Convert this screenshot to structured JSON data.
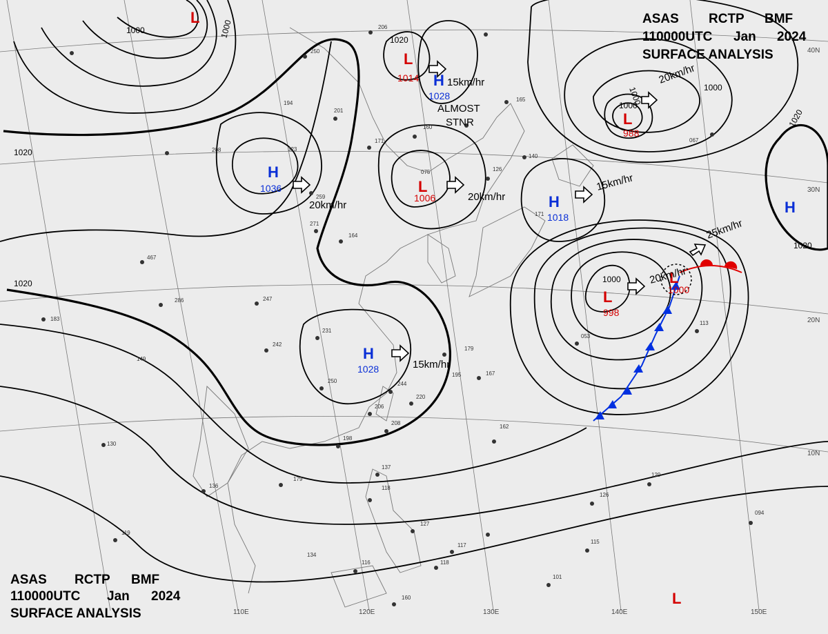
{
  "header_top": {
    "line1": [
      "ASAS",
      "RCTP",
      "BMF"
    ],
    "line2": [
      "110000UTC",
      "Jan",
      "2024"
    ],
    "line3": "SURFACE ANALYSIS"
  },
  "header_bottom": {
    "line1": [
      "ASAS",
      "RCTP",
      "BMF"
    ],
    "line2": [
      "110000UTC",
      "Jan",
      "2024"
    ],
    "line3": "SURFACE ANALYSIS"
  },
  "pressure_systems": [
    {
      "id": "l-top-left",
      "type": "L",
      "value": ""
    },
    {
      "id": "l-1014",
      "type": "L",
      "value": "1014"
    },
    {
      "id": "h-1028-north",
      "type": "H",
      "value": "1028"
    },
    {
      "id": "l-988-ne",
      "type": "L",
      "value": "988"
    },
    {
      "id": "h-1036",
      "type": "H",
      "value": "1036"
    },
    {
      "id": "l-1006",
      "type": "L",
      "value": "1006"
    },
    {
      "id": "h-1018",
      "type": "H",
      "value": "1018"
    },
    {
      "id": "h-east",
      "type": "H",
      "value": ""
    },
    {
      "id": "l-998",
      "type": "L",
      "value": "998"
    },
    {
      "id": "l-1000-front",
      "type": "L",
      "value": "1000"
    },
    {
      "id": "h-1028-south",
      "type": "H",
      "value": "1028"
    },
    {
      "id": "l-bottom-right",
      "type": "L",
      "value": ""
    }
  ],
  "movements": {
    "m1028n": "15km/hr",
    "almost1": "ALMOST",
    "almost2": "STNR",
    "m988": "20km/hr",
    "m1036": "20km/hr",
    "m1006": "20km/hr",
    "m1018": "15km/hr",
    "m_front": "25km/hr",
    "m998": "20km/hr",
    "m1028s": "15km/hr"
  },
  "isobar_labels": [
    "1000",
    "1000",
    "1020",
    "1020",
    "1000",
    "1000",
    "1020",
    "1020",
    "1000",
    "1000",
    "1020"
  ],
  "grid_labels": {
    "lat_40": "40N",
    "lat_30": "30N",
    "lat_20": "20N",
    "lat_10": "10N",
    "lon_110": "110E",
    "lon_120": "120E",
    "lon_130": "130E",
    "lon_140": "140E",
    "lon_150": "150E"
  },
  "stations": [
    "206",
    "250",
    "208",
    "323",
    "194",
    "201",
    "171",
    "160",
    "259",
    "271",
    "164",
    "075",
    "126",
    "140",
    "171",
    "467",
    "286",
    "247",
    "183",
    "149",
    "242",
    "231",
    "250",
    "195",
    "179",
    "167",
    "244",
    "220",
    "206",
    "208",
    "198",
    "162",
    "130",
    "179",
    "136",
    "137",
    "118",
    "127",
    "126",
    "129",
    "094",
    "119",
    "134",
    "116",
    "118",
    "117",
    "115",
    "101",
    "160",
    "053",
    "113",
    "067",
    "165"
  ],
  "colors": {
    "low": "#d40000",
    "high": "#0a2fd6",
    "warm_front": "#e00000",
    "cold_front": "#0030e0",
    "background": "#ececec"
  }
}
